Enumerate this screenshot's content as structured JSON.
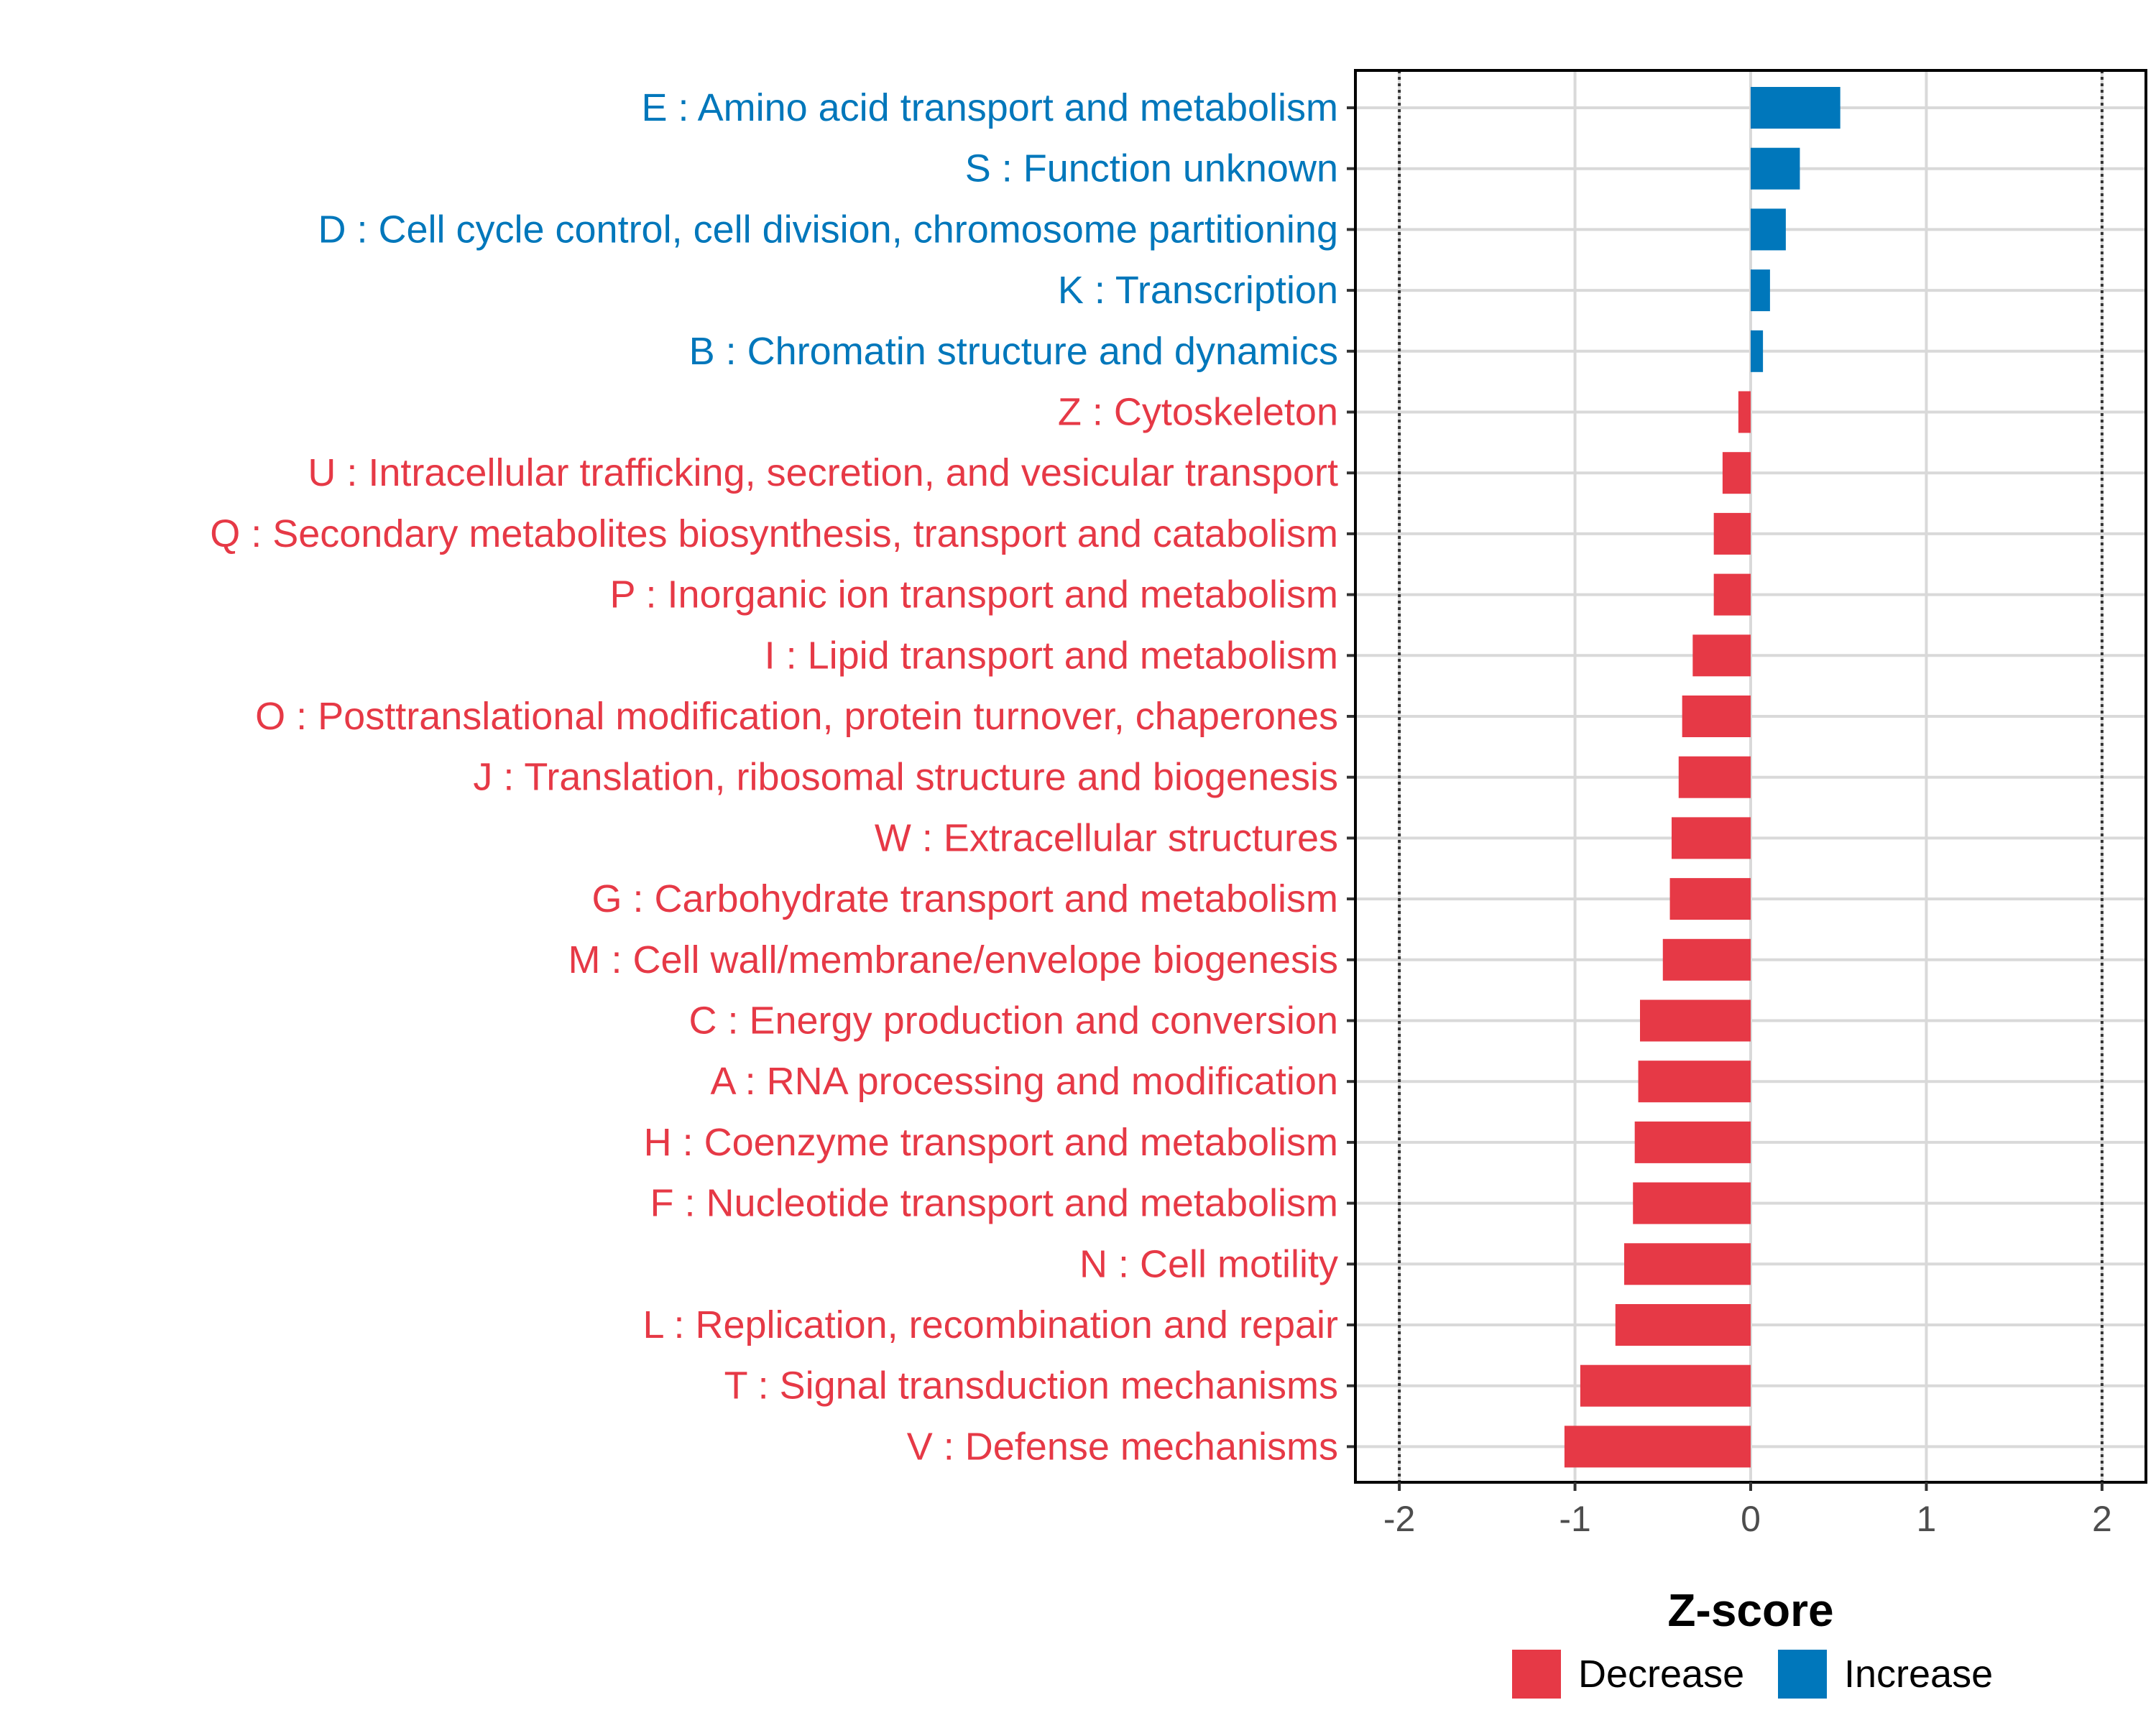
{
  "chart_data": {
    "type": "bar",
    "orientation": "horizontal",
    "title": "",
    "xlabel": "Z-score",
    "ylabel": "",
    "xlim": [
      -2.25,
      2.25
    ],
    "xticks": [
      -2,
      -1,
      0,
      1,
      2
    ],
    "reference_lines": [
      -2,
      2
    ],
    "grid": true,
    "legend_position": "bottom",
    "series_colors": {
      "Decrease": "#E63946",
      "Increase": "#0077BB"
    },
    "legend": [
      {
        "name": "Decrease",
        "color": "#E63946"
      },
      {
        "name": "Increase",
        "color": "#0077BB"
      }
    ],
    "categories": [
      "E : Amino acid transport and metabolism",
      "S : Function unknown",
      "D : Cell cycle control, cell division, chromosome partitioning",
      "K : Transcription",
      "B : Chromatin structure and dynamics",
      "Z : Cytoskeleton",
      "U : Intracellular trafficking, secretion, and vesicular transport",
      "Q : Secondary metabolites biosynthesis, transport and catabolism",
      "P : Inorganic ion transport and metabolism",
      "I : Lipid transport and metabolism",
      "O : Posttranslational modification, protein turnover, chaperones",
      "J : Translation, ribosomal structure and biogenesis",
      "W : Extracellular structures",
      "G : Carbohydrate transport and metabolism",
      "M : Cell wall/membrane/envelope biogenesis",
      "C : Energy production and conversion",
      "A : RNA processing and modification",
      "H : Coenzyme transport and metabolism",
      "F : Nucleotide transport and metabolism",
      "N : Cell motility",
      "L : Replication, recombination and repair",
      "T : Signal transduction mechanisms",
      "V : Defense mechanisms"
    ],
    "values": [
      0.51,
      0.28,
      0.2,
      0.11,
      0.07,
      -0.07,
      -0.16,
      -0.21,
      -0.21,
      -0.33,
      -0.39,
      -0.41,
      -0.45,
      -0.46,
      -0.5,
      -0.63,
      -0.64,
      -0.66,
      -0.67,
      -0.72,
      -0.77,
      -0.97,
      -1.06
    ],
    "groups": [
      "Increase",
      "Increase",
      "Increase",
      "Increase",
      "Increase",
      "Decrease",
      "Decrease",
      "Decrease",
      "Decrease",
      "Decrease",
      "Decrease",
      "Decrease",
      "Decrease",
      "Decrease",
      "Decrease",
      "Decrease",
      "Decrease",
      "Decrease",
      "Decrease",
      "Decrease",
      "Decrease",
      "Decrease",
      "Decrease"
    ]
  }
}
